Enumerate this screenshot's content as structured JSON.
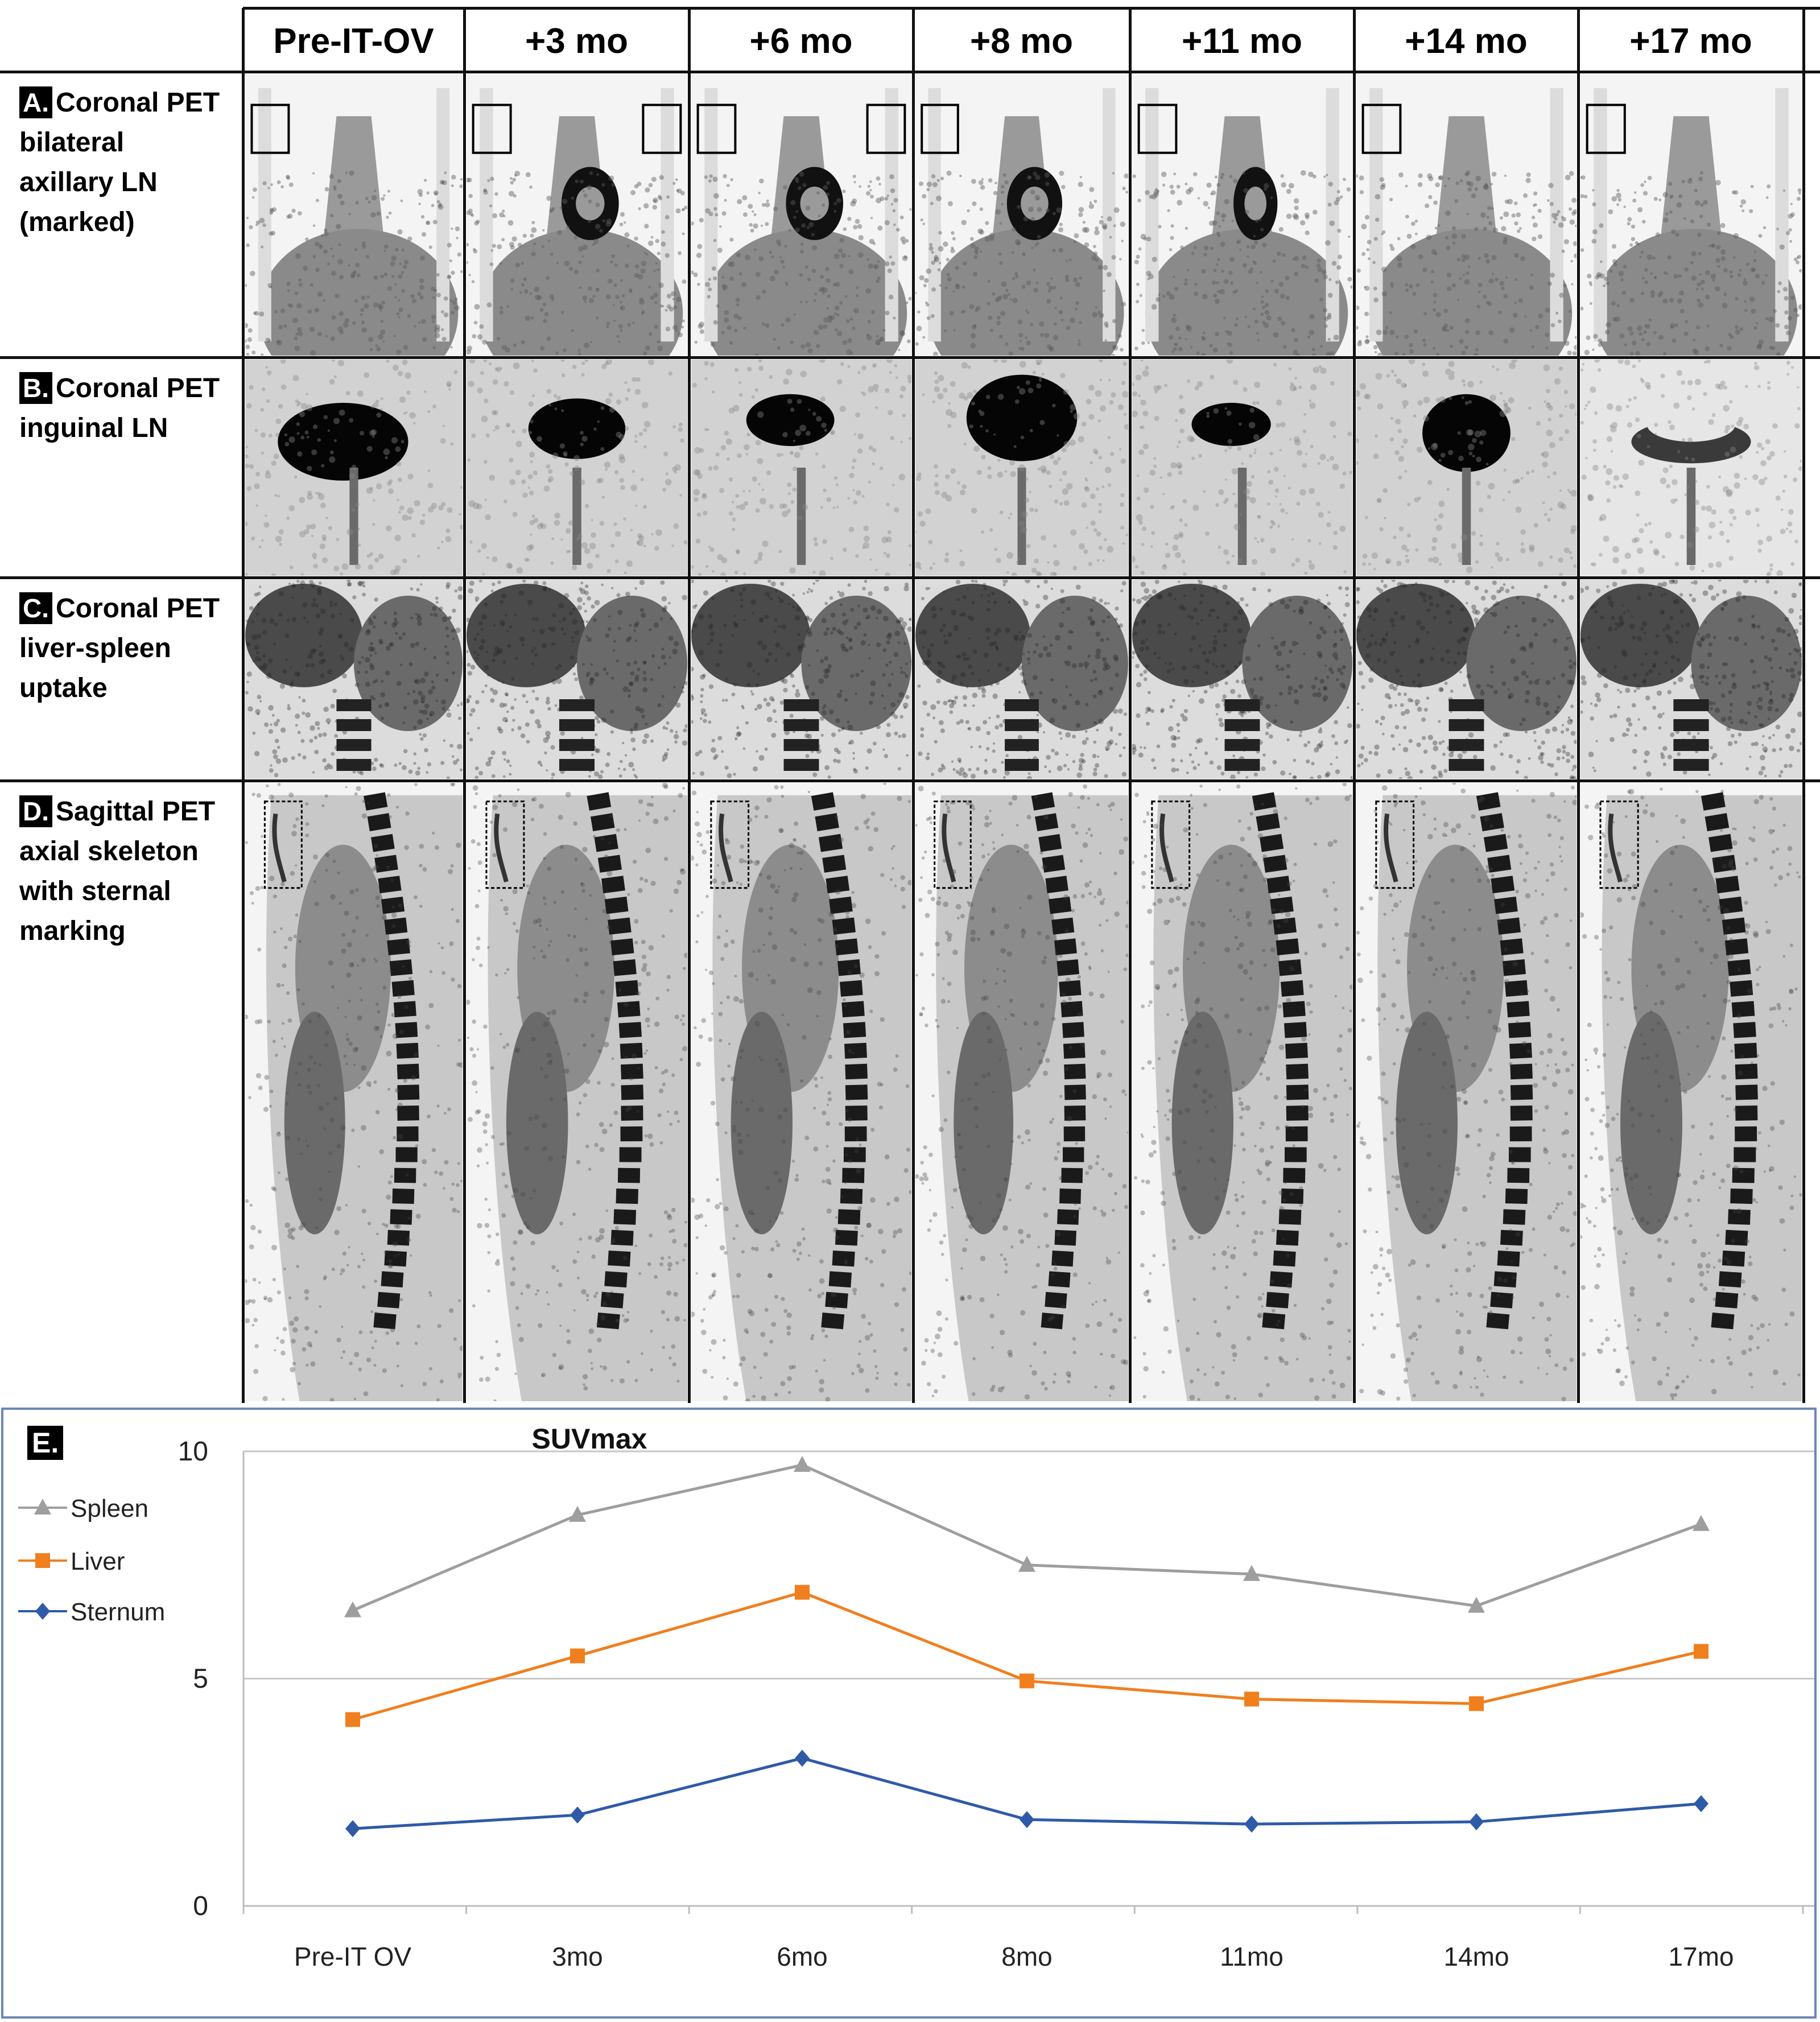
{
  "columns": [
    "Pre-IT-OV",
    "+3 mo",
    "+6 mo",
    "+8 mo",
    "+11 mo",
    "+14 mo",
    "+17 mo"
  ],
  "rows": [
    {
      "letter": "A.",
      "lines": [
        "Coronal PET",
        "bilateral",
        "axillary  LN",
        "(marked)"
      ]
    },
    {
      "letter": "B.",
      "lines": [
        "Coronal PET",
        "inguinal  LN"
      ]
    },
    {
      "letter": "C.",
      "lines": [
        "Coronal PET",
        "liver-spleen",
        "uptake"
      ]
    },
    {
      "letter": "D.",
      "lines": [
        "Sagittal PET",
        "axial skeleton",
        "with sternal",
        "marking"
      ]
    }
  ],
  "panel_e_letter": "E.",
  "chart_data": {
    "type": "line",
    "title": "SUVmax",
    "categories": [
      "Pre-IT OV",
      "3mo",
      "6mo",
      "8mo",
      "11mo",
      "14mo",
      "17mo"
    ],
    "ylim": [
      0,
      10
    ],
    "yticks": [
      "0",
      "5",
      "10"
    ],
    "grid": true,
    "legend_position": "left",
    "series": [
      {
        "name": "Spleen",
        "color": "#9e9e9e",
        "marker": "triangle",
        "values": [
          6.5,
          8.6,
          9.7,
          7.5,
          7.3,
          6.6,
          8.4
        ]
      },
      {
        "name": "Liver",
        "color": "#f07f1e",
        "marker": "square",
        "values": [
          4.1,
          5.5,
          6.9,
          4.95,
          4.55,
          4.45,
          5.6
        ]
      },
      {
        "name": "Sternum",
        "color": "#2e5aa8",
        "marker": "diamond",
        "values": [
          1.7,
          2.0,
          3.25,
          1.9,
          1.8,
          1.85,
          2.25
        ]
      }
    ]
  }
}
